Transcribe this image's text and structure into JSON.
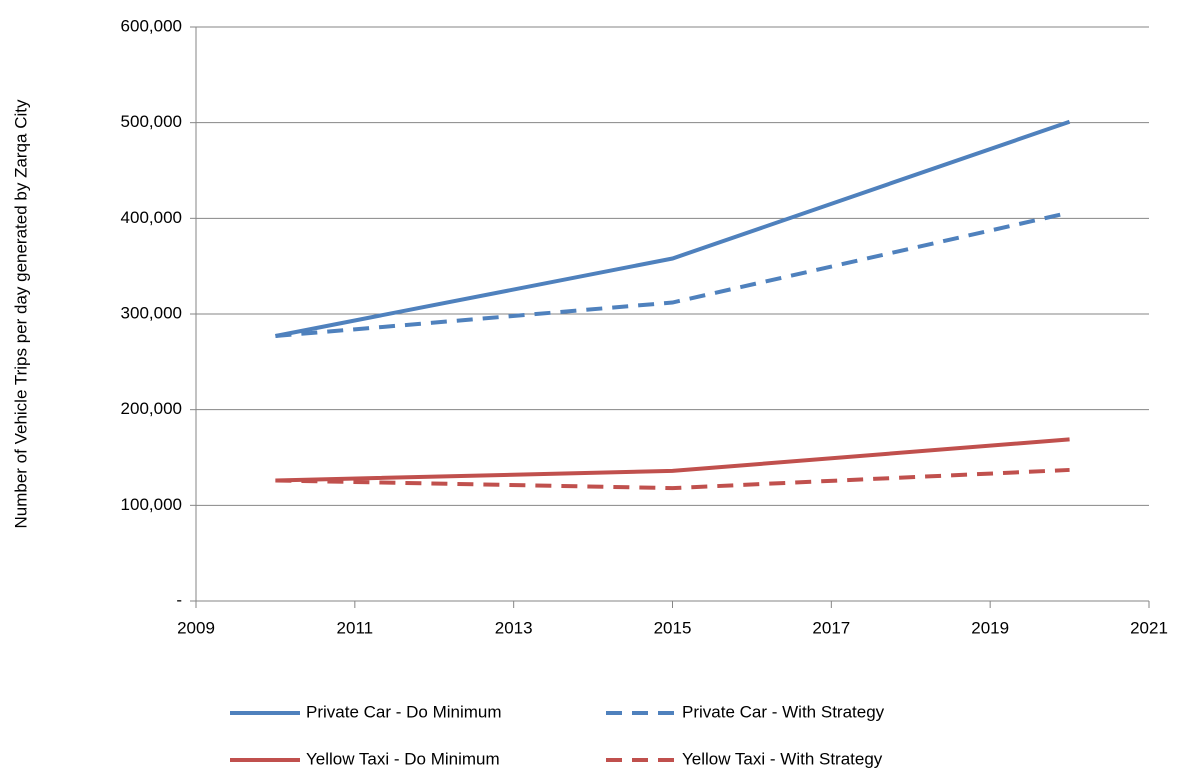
{
  "chart_data": {
    "type": "line",
    "y_label": "Number of Vehicle Trips per day generated by Zarqa City",
    "x": [
      2010,
      2015,
      2020
    ],
    "series": [
      {
        "name": "Private Car - Do Minimum",
        "color": "#4f81bd",
        "style": "solid",
        "values": [
          277000,
          358000,
          501000
        ]
      },
      {
        "name": "Private Car - With Strategy",
        "color": "#4f81bd",
        "style": "dashed",
        "values": [
          277000,
          312000,
          406000
        ]
      },
      {
        "name": "Yellow Taxi - Do Minimum",
        "color": "#c0504d",
        "style": "solid",
        "values": [
          126000,
          136000,
          169000
        ]
      },
      {
        "name": "Yellow Taxi - With Strategy",
        "color": "#c0504d",
        "style": "dashed",
        "values": [
          126000,
          118000,
          137000
        ]
      }
    ],
    "xlim": [
      2009,
      2021
    ],
    "xticks": [
      2009,
      2011,
      2013,
      2015,
      2017,
      2019,
      2021
    ],
    "ylim": [
      0,
      600000
    ],
    "yticks": [
      {
        "value": 0,
        "label": "-"
      },
      {
        "value": 100000,
        "label": "100,000"
      },
      {
        "value": 200000,
        "label": "200,000"
      },
      {
        "value": 300000,
        "label": "300,000"
      },
      {
        "value": 400000,
        "label": "400,000"
      },
      {
        "value": 500000,
        "label": "500,000"
      },
      {
        "value": 600000,
        "label": "600,000"
      }
    ],
    "grid": true,
    "legend": "bottom"
  }
}
